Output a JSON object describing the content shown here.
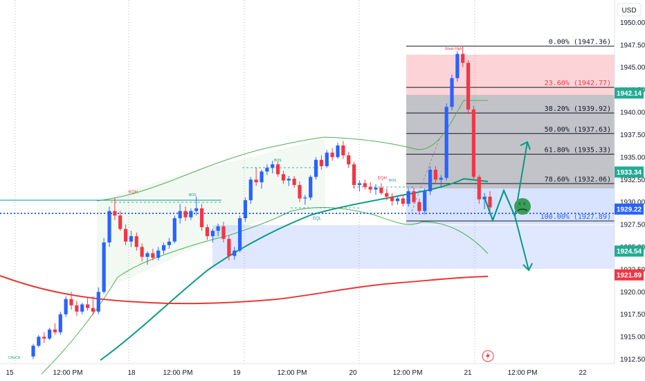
{
  "currency": "USD",
  "y_ticks": [
    "1950.00",
    "1947.50",
    "1945.00",
    "1942.50",
    "1940.00",
    "1937.50",
    "1935.00",
    "1932.50",
    "1930.00",
    "1927.50",
    "1925.00",
    "1922.50",
    "1920.00",
    "1917.50",
    "1915.00",
    "1912.50"
  ],
  "x_ticks": [
    "15",
    "12:00 PM",
    "18",
    "12:00 PM",
    "19",
    "12:00 PM",
    "20",
    "12:00 PM",
    "21",
    "12:00 PM",
    "22"
  ],
  "price_badges": [
    {
      "value": "1942.14",
      "color": "#22ab94"
    },
    {
      "value": "1933.34",
      "color": "#22ab94"
    },
    {
      "value": "1929.22",
      "color": "#2962ff"
    },
    {
      "value": "1924.54",
      "color": "#22ab94"
    },
    {
      "value": "1921.89",
      "color": "#f23645"
    }
  ],
  "chart_data": {
    "type": "candlestick",
    "ylim": [
      1912.0,
      1952.5
    ],
    "fib_levels": [
      {
        "label": "0.00% (1947.36)",
        "price": 1947.36
      },
      {
        "label": "23.60% (1942.77)",
        "price": 1942.77
      },
      {
        "label": "38.20% (1939.92)",
        "price": 1939.92
      },
      {
        "label": "50.00% (1937.63)",
        "price": 1937.63
      },
      {
        "label": "61.80% (1935.33)",
        "price": 1935.33
      },
      {
        "label": "78.60% (1932.06)",
        "price": 1932.06
      },
      {
        "label": "100.00% (1927.89)",
        "price": 1927.89
      }
    ],
    "annotations": [
      "EQH",
      "BOS",
      "BOS",
      "EQH",
      "BOS",
      "EQL",
      "Weak High",
      "CHoCH"
    ],
    "candles": [
      [
        1912.8,
        1914.2,
        1912.5,
        1914.0
      ],
      [
        1914.0,
        1915.2,
        1913.8,
        1915.0
      ],
      [
        1915.0,
        1915.5,
        1914.3,
        1914.8
      ],
      [
        1914.8,
        1916.0,
        1914.6,
        1915.8
      ],
      [
        1915.8,
        1916.5,
        1915.2,
        1915.5
      ],
      [
        1915.5,
        1917.8,
        1915.2,
        1917.5
      ],
      [
        1917.5,
        1919.5,
        1917.2,
        1919.2
      ],
      [
        1919.2,
        1920.0,
        1918.0,
        1918.5
      ],
      [
        1918.5,
        1919.0,
        1917.3,
        1917.8
      ],
      [
        1917.8,
        1918.8,
        1917.5,
        1918.6
      ],
      [
        1918.6,
        1919.4,
        1917.9,
        1918.2
      ],
      [
        1918.2,
        1919.5,
        1917.4,
        1917.8
      ],
      [
        1917.8,
        1920.5,
        1917.5,
        1920.0
      ],
      [
        1920.0,
        1926.0,
        1919.8,
        1925.5
      ],
      [
        1925.5,
        1929.5,
        1925.0,
        1929.0
      ],
      [
        1929.0,
        1930.5,
        1928.0,
        1928.5
      ],
      [
        1928.5,
        1929.0,
        1926.8,
        1927.0
      ],
      [
        1927.0,
        1927.5,
        1925.2,
        1925.6
      ],
      [
        1925.6,
        1926.8,
        1925.0,
        1926.2
      ],
      [
        1926.2,
        1926.6,
        1924.6,
        1925.0
      ],
      [
        1925.0,
        1925.4,
        1923.4,
        1923.9
      ],
      [
        1923.9,
        1924.5,
        1923.0,
        1924.3
      ],
      [
        1924.3,
        1924.8,
        1923.5,
        1923.8
      ],
      [
        1923.8,
        1925.0,
        1923.5,
        1924.6
      ],
      [
        1924.6,
        1925.5,
        1924.2,
        1925.2
      ],
      [
        1925.2,
        1926.0,
        1924.8,
        1925.6
      ],
      [
        1925.6,
        1928.5,
        1925.4,
        1928.2
      ],
      [
        1928.2,
        1929.8,
        1927.6,
        1929.0
      ],
      [
        1929.0,
        1929.5,
        1927.9,
        1928.3
      ],
      [
        1928.3,
        1929.3,
        1928.0,
        1929.0
      ],
      [
        1929.0,
        1930.6,
        1928.5,
        1929.3
      ],
      [
        1929.3,
        1929.8,
        1926.8,
        1927.2
      ],
      [
        1927.2,
        1927.5,
        1925.8,
        1926.2
      ],
      [
        1926.2,
        1927.0,
        1925.5,
        1926.8
      ],
      [
        1926.8,
        1927.6,
        1926.2,
        1927.3
      ],
      [
        1927.3,
        1927.8,
        1925.5,
        1925.9
      ],
      [
        1925.9,
        1926.3,
        1923.5,
        1924.0
      ],
      [
        1924.0,
        1925.0,
        1923.6,
        1924.6
      ],
      [
        1924.6,
        1928.5,
        1924.4,
        1928.2
      ],
      [
        1928.2,
        1930.5,
        1927.8,
        1930.2
      ],
      [
        1930.2,
        1932.8,
        1929.8,
        1932.5
      ],
      [
        1932.5,
        1933.8,
        1931.8,
        1932.2
      ],
      [
        1932.2,
        1933.6,
        1931.5,
        1933.4
      ],
      [
        1933.4,
        1934.2,
        1933.0,
        1933.8
      ],
      [
        1933.8,
        1934.6,
        1933.2,
        1934.2
      ],
      [
        1934.2,
        1934.5,
        1932.8,
        1933.1
      ],
      [
        1933.1,
        1933.5,
        1932.0,
        1932.4
      ],
      [
        1932.4,
        1932.9,
        1931.8,
        1932.6
      ],
      [
        1932.6,
        1932.9,
        1931.6,
        1931.9
      ],
      [
        1931.9,
        1932.3,
        1930.0,
        1930.4
      ],
      [
        1930.4,
        1930.8,
        1929.7,
        1930.5
      ],
      [
        1930.5,
        1933.0,
        1930.2,
        1932.8
      ],
      [
        1932.8,
        1935.0,
        1932.5,
        1934.7
      ],
      [
        1934.7,
        1935.2,
        1933.6,
        1934.0
      ],
      [
        1934.0,
        1935.8,
        1933.8,
        1935.5
      ],
      [
        1935.5,
        1936.0,
        1934.6,
        1935.0
      ],
      [
        1935.0,
        1936.6,
        1934.8,
        1936.3
      ],
      [
        1936.3,
        1936.8,
        1934.8,
        1935.2
      ],
      [
        1935.2,
        1935.6,
        1933.8,
        1934.2
      ],
      [
        1934.2,
        1934.5,
        1931.5,
        1931.9
      ],
      [
        1931.9,
        1932.4,
        1931.2,
        1932.1
      ],
      [
        1932.1,
        1932.5,
        1931.4,
        1931.7
      ],
      [
        1931.7,
        1932.2,
        1931.0,
        1931.4
      ],
      [
        1931.4,
        1932.0,
        1930.8,
        1931.6
      ],
      [
        1931.6,
        1932.1,
        1930.8,
        1931.0
      ],
      [
        1931.0,
        1931.5,
        1930.2,
        1930.6
      ],
      [
        1930.6,
        1931.0,
        1929.6,
        1930.1
      ],
      [
        1930.1,
        1930.7,
        1929.7,
        1930.4
      ],
      [
        1930.4,
        1930.8,
        1929.5,
        1929.8
      ],
      [
        1929.8,
        1931.5,
        1929.5,
        1931.2
      ],
      [
        1931.2,
        1931.6,
        1929.8,
        1930.0
      ],
      [
        1930.0,
        1930.4,
        1928.6,
        1929.0
      ],
      [
        1929.0,
        1931.5,
        1928.6,
        1931.2
      ],
      [
        1931.2,
        1934.0,
        1930.8,
        1933.6
      ],
      [
        1933.6,
        1934.0,
        1932.0,
        1932.5
      ],
      [
        1932.5,
        1933.0,
        1931.7,
        1932.7
      ],
      [
        1932.7,
        1941.0,
        1932.4,
        1940.6
      ],
      [
        1940.6,
        1944.2,
        1940.2,
        1943.8
      ],
      [
        1943.8,
        1946.8,
        1943.4,
        1946.5
      ],
      [
        1946.5,
        1947.4,
        1945.0,
        1945.5
      ],
      [
        1945.5,
        1945.8,
        1939.8,
        1940.3
      ],
      [
        1940.3,
        1940.7,
        1932.5,
        1932.8
      ],
      [
        1932.8,
        1933.0,
        1929.8,
        1930.3
      ],
      [
        1930.3,
        1931.0,
        1929.2,
        1930.6
      ],
      [
        1930.6,
        1931.2,
        1929.0,
        1929.4
      ]
    ],
    "series": [
      {
        "name": "",
        "color": "#089981"
      },
      {
        "name": "",
        "color": "#e53935"
      }
    ]
  }
}
